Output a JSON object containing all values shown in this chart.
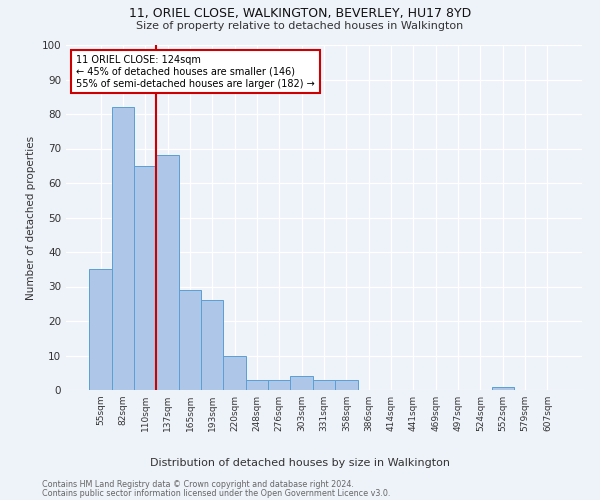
{
  "title1": "11, ORIEL CLOSE, WALKINGTON, BEVERLEY, HU17 8YD",
  "title2": "Size of property relative to detached houses in Walkington",
  "xlabel": "Distribution of detached houses by size in Walkington",
  "ylabel": "Number of detached properties",
  "footnote1": "Contains HM Land Registry data © Crown copyright and database right 2024.",
  "footnote2": "Contains public sector information licensed under the Open Government Licence v3.0.",
  "bin_labels": [
    "55sqm",
    "82sqm",
    "110sqm",
    "137sqm",
    "165sqm",
    "193sqm",
    "220sqm",
    "248sqm",
    "276sqm",
    "303sqm",
    "331sqm",
    "358sqm",
    "386sqm",
    "414sqm",
    "441sqm",
    "469sqm",
    "497sqm",
    "524sqm",
    "552sqm",
    "579sqm",
    "607sqm"
  ],
  "bar_values": [
    35,
    82,
    65,
    68,
    29,
    26,
    10,
    3,
    3,
    4,
    3,
    3,
    0,
    0,
    0,
    0,
    0,
    0,
    1,
    0,
    0
  ],
  "bar_color": "#aec6e8",
  "bar_edge_color": "#5a9fd4",
  "annotation_text": "11 ORIEL CLOSE: 124sqm\n← 45% of detached houses are smaller (146)\n55% of semi-detached houses are larger (182) →",
  "annotation_box_color": "#ffffff",
  "annotation_box_edge": "#cc0000",
  "vline_color": "#cc0000",
  "ylim": [
    0,
    100
  ],
  "yticks": [
    0,
    10,
    20,
    30,
    40,
    50,
    60,
    70,
    80,
    90,
    100
  ],
  "background_color": "#eef2f9",
  "axes_background": "#eef2f9",
  "vline_x": 2.5
}
